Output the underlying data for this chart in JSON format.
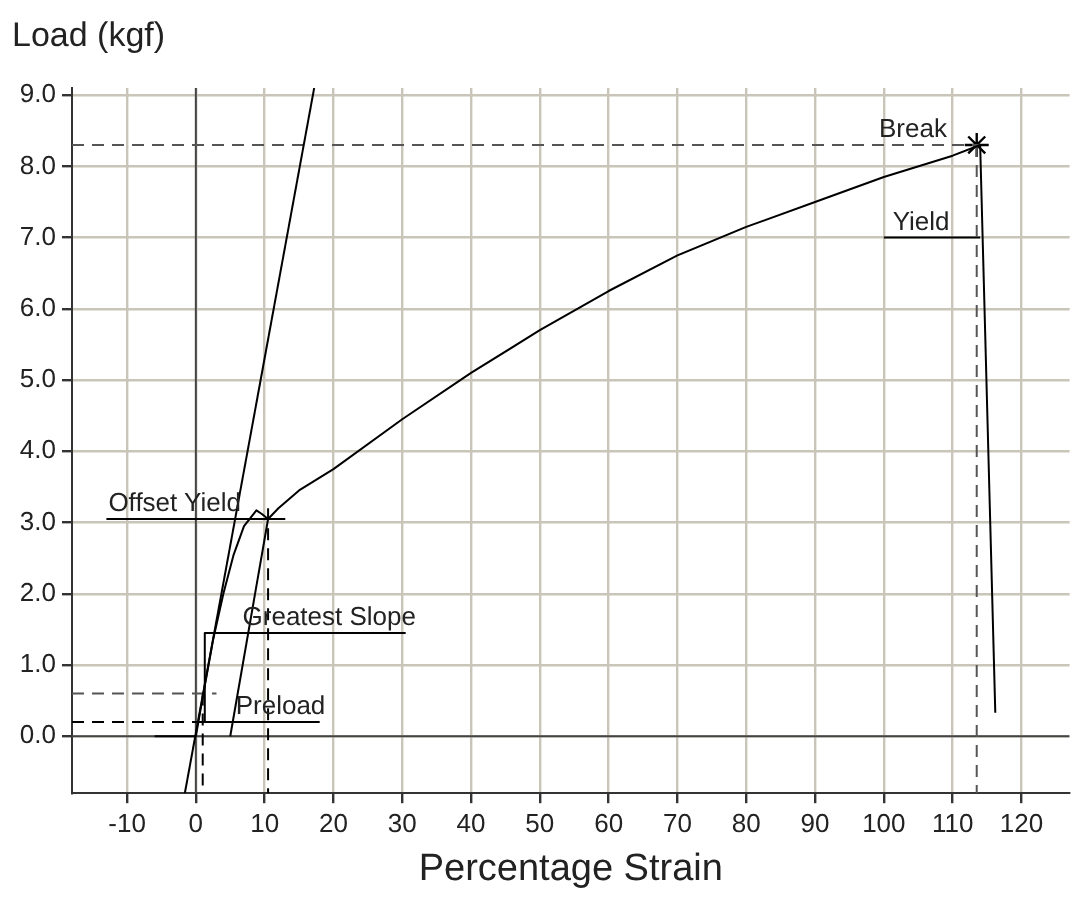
{
  "chart_data": {
    "type": "line",
    "xlabel": "Percentage Strain",
    "ylabel": "Load (kgf)",
    "xlim": [
      -18,
      127
    ],
    "ylim": [
      -0.8,
      9.1
    ],
    "xticks": [
      -10,
      0,
      10,
      20,
      30,
      40,
      50,
      60,
      70,
      80,
      90,
      100,
      110,
      120
    ],
    "yticks": [
      {
        "value": 0,
        "label": "0.0"
      },
      {
        "value": 1,
        "label": "1.0"
      },
      {
        "value": 2,
        "label": "2.0"
      },
      {
        "value": 3,
        "label": "3.0"
      },
      {
        "value": 4,
        "label": "4.0"
      },
      {
        "value": 5,
        "label": "5.0"
      },
      {
        "value": 6,
        "label": "6.0"
      },
      {
        "value": 7,
        "label": "7.0"
      },
      {
        "value": 8,
        "label": "8.0"
      },
      {
        "value": 9,
        "label": "9.0"
      }
    ],
    "grid": true,
    "legend": false,
    "marker": "none",
    "series": [
      {
        "color": "#000000",
        "x": [
          -6,
          0,
          1,
          2.5,
          4,
          5.5,
          7,
          8.8,
          9.6,
          10.5,
          12,
          15,
          20,
          30,
          40,
          50,
          60,
          70,
          80,
          90,
          100,
          110,
          114,
          116.2
        ],
        "values": [
          0,
          0,
          0.55,
          1.35,
          2.0,
          2.55,
          2.95,
          3.17,
          3.12,
          3.05,
          3.2,
          3.45,
          3.75,
          4.45,
          5.1,
          5.7,
          6.25,
          6.75,
          7.15,
          7.5,
          7.85,
          8.15,
          8.3,
          0.33
        ]
      },
      {
        "color": "#000000",
        "x": [
          -1.6,
          17.2
        ],
        "values": [
          -0.8,
          9.1
        ]
      },
      {
        "color": "#000000",
        "x": [
          5,
          10.5
        ],
        "values": [
          0,
          3.05
        ]
      },
      {
        "color": "#555555",
        "line_style": "dashed",
        "x": [
          -18,
          114
        ],
        "values": [
          8.3,
          8.3
        ]
      },
      {
        "color": "#555555",
        "line_style": "dashed",
        "x": [
          113.5,
          113.5
        ],
        "values": [
          8.3,
          -0.8
        ]
      },
      {
        "color": "#000000",
        "line_style": "dashed",
        "x": [
          10.5,
          10.5
        ],
        "values": [
          3.2,
          -0.8
        ]
      },
      {
        "color": "#000000",
        "line_style": "dashed",
        "x": [
          -18,
          1
        ],
        "values": [
          0.2,
          0.2
        ]
      },
      {
        "color": "#555555",
        "line_style": "dashed",
        "x": [
          -18,
          3
        ],
        "values": [
          0.6,
          0.6
        ]
      },
      {
        "color": "#000000",
        "line_style": "dashed",
        "x": [
          1,
          1
        ],
        "values": [
          0.6,
          -0.8
        ]
      },
      {
        "color": "#000000",
        "x": [
          -13,
          13
        ],
        "values": [
          3.05,
          3.05
        ]
      },
      {
        "color": "#000000",
        "x": [
          1.3,
          1.3,
          30.5
        ],
        "values": [
          0.2,
          1.45,
          1.45
        ]
      },
      {
        "color": "#000000",
        "x": [
          1,
          18
        ],
        "values": [
          0.2,
          0.2
        ]
      },
      {
        "color": "#000000",
        "x": [
          100,
          114
        ],
        "values": [
          7.0,
          7.0
        ]
      },
      {
        "color": "#444444",
        "x": [
          0,
          0
        ],
        "values": [
          -0.8,
          9.1
        ]
      },
      {
        "color": "#444444",
        "x": [
          -18,
          127
        ],
        "values": [
          0,
          0
        ]
      },
      {
        "type": "scatter",
        "marker": "cross",
        "color": "#000000",
        "x": [
          113.5
        ],
        "values": [
          8.3
        ]
      }
    ],
    "annotations": [
      {
        "text": "Offset Yield",
        "x": -13,
        "y": 3.05
      },
      {
        "text": "Greatest Slope",
        "x": 6.5,
        "y": 1.45
      },
      {
        "text": "Preload",
        "x": 5.5,
        "y": 0.2
      },
      {
        "text": "Yield",
        "x": 101,
        "y": 7.0
      },
      {
        "text": "Break",
        "x": 99,
        "y": 8.3
      }
    ]
  }
}
